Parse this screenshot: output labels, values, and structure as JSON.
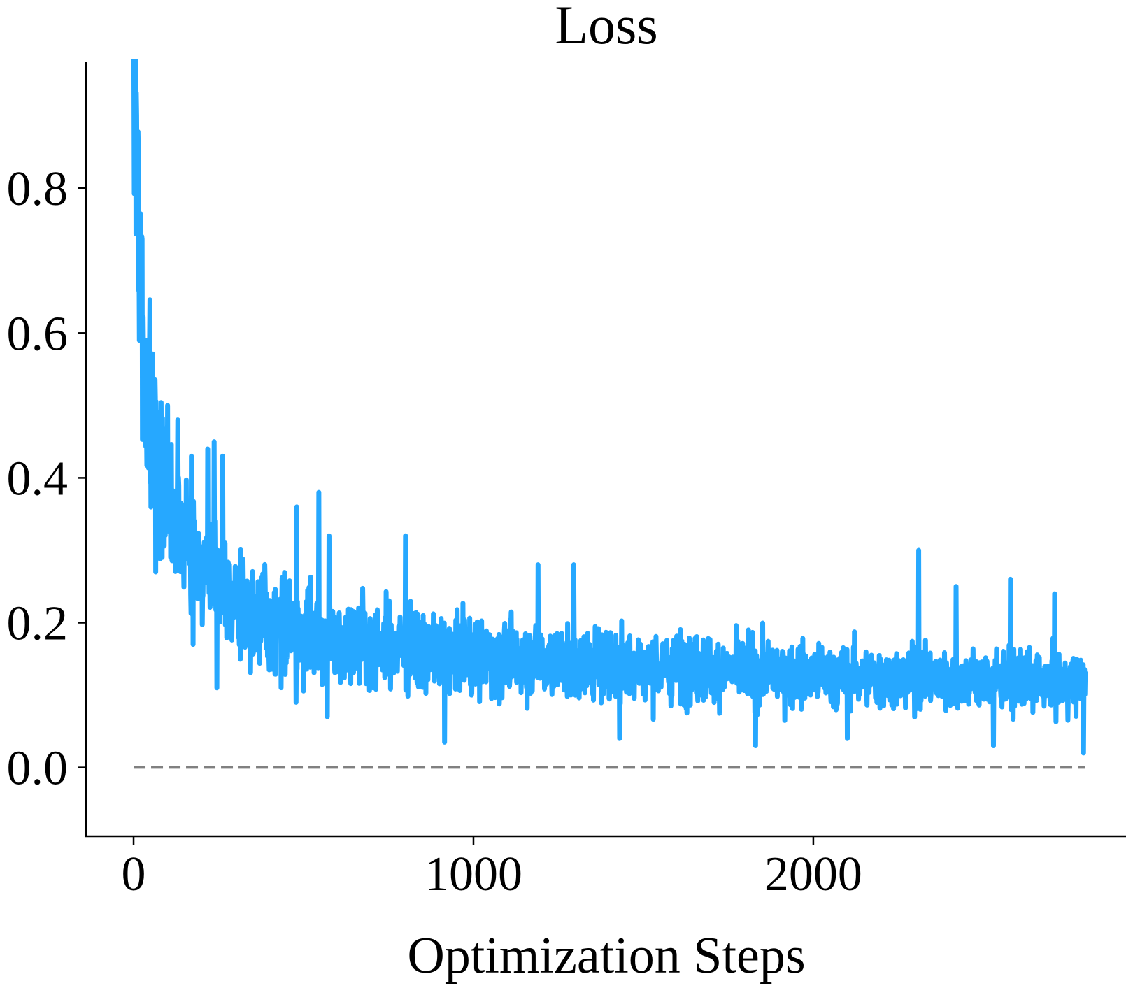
{
  "chart_data": {
    "type": "line",
    "title": "Loss",
    "xlabel": "Optimization Steps",
    "ylabel": "",
    "xlim": [
      -140,
      2920
    ],
    "ylim": [
      -0.095,
      0.975
    ],
    "xticks": [
      0,
      1000,
      2000
    ],
    "xtick_labels": [
      "0",
      "1000",
      "2000"
    ],
    "yticks": [
      0.0,
      0.2,
      0.4,
      0.6,
      0.8
    ],
    "ytick_labels": [
      "0.0",
      "0.2",
      "0.4",
      "0.6",
      "0.8"
    ],
    "grid": false,
    "legend": null,
    "colors": {
      "loss": "#26a8ff",
      "reference": "#808080"
    },
    "reference_line": {
      "y": 0.0,
      "x_range": [
        0,
        2800
      ],
      "style": "dashed"
    },
    "series": [
      {
        "total_steps": 2800,
        "noise_seed": 7,
        "key_points": [
          {
            "x": 0,
            "y": 0.9
          },
          {
            "x": 5,
            "y": 0.94
          },
          {
            "x": 12,
            "y": 0.85
          },
          {
            "x": 20,
            "y": 0.66
          },
          {
            "x": 30,
            "y": 0.55
          },
          {
            "x": 50,
            "y": 0.47
          },
          {
            "x": 75,
            "y": 0.42
          },
          {
            "x": 110,
            "y": 0.37
          },
          {
            "x": 150,
            "y": 0.32
          },
          {
            "x": 200,
            "y": 0.28
          },
          {
            "x": 260,
            "y": 0.245
          },
          {
            "x": 350,
            "y": 0.21
          },
          {
            "x": 500,
            "y": 0.185
          },
          {
            "x": 700,
            "y": 0.17
          },
          {
            "x": 1000,
            "y": 0.155
          },
          {
            "x": 1300,
            "y": 0.145
          },
          {
            "x": 1700,
            "y": 0.135
          },
          {
            "x": 2100,
            "y": 0.125
          },
          {
            "x": 2500,
            "y": 0.12
          },
          {
            "x": 2800,
            "y": 0.115
          }
        ],
        "spikes": [
          {
            "x": 5,
            "y": 0.94
          },
          {
            "x": 14,
            "y": 0.85
          },
          {
            "x": 22,
            "y": 0.66
          },
          {
            "x": 40,
            "y": 0.59
          },
          {
            "x": 72,
            "y": 0.49
          },
          {
            "x": 100,
            "y": 0.5
          },
          {
            "x": 130,
            "y": 0.48
          },
          {
            "x": 170,
            "y": 0.43
          },
          {
            "x": 218,
            "y": 0.44
          },
          {
            "x": 237,
            "y": 0.45
          },
          {
            "x": 262,
            "y": 0.43
          },
          {
            "x": 480,
            "y": 0.36
          },
          {
            "x": 545,
            "y": 0.38
          },
          {
            "x": 575,
            "y": 0.32
          },
          {
            "x": 800,
            "y": 0.32
          },
          {
            "x": 1190,
            "y": 0.28
          },
          {
            "x": 1295,
            "y": 0.28
          },
          {
            "x": 2310,
            "y": 0.3
          },
          {
            "x": 2420,
            "y": 0.25
          },
          {
            "x": 2580,
            "y": 0.26
          },
          {
            "x": 2710,
            "y": 0.24
          },
          {
            "x": 17,
            "y": 0.59
          },
          {
            "x": 32,
            "y": 0.48
          },
          {
            "x": 55,
            "y": 0.38
          },
          {
            "x": 65,
            "y": 0.27
          },
          {
            "x": 84,
            "y": 0.29
          },
          {
            "x": 110,
            "y": 0.3
          },
          {
            "x": 175,
            "y": 0.17
          },
          {
            "x": 245,
            "y": 0.11
          },
          {
            "x": 478,
            "y": 0.09
          },
          {
            "x": 570,
            "y": 0.07
          },
          {
            "x": 915,
            "y": 0.035
          },
          {
            "x": 1430,
            "y": 0.04
          },
          {
            "x": 1830,
            "y": 0.03
          },
          {
            "x": 2100,
            "y": 0.04
          },
          {
            "x": 2530,
            "y": 0.03
          },
          {
            "x": 2795,
            "y": 0.02
          }
        ]
      }
    ]
  }
}
